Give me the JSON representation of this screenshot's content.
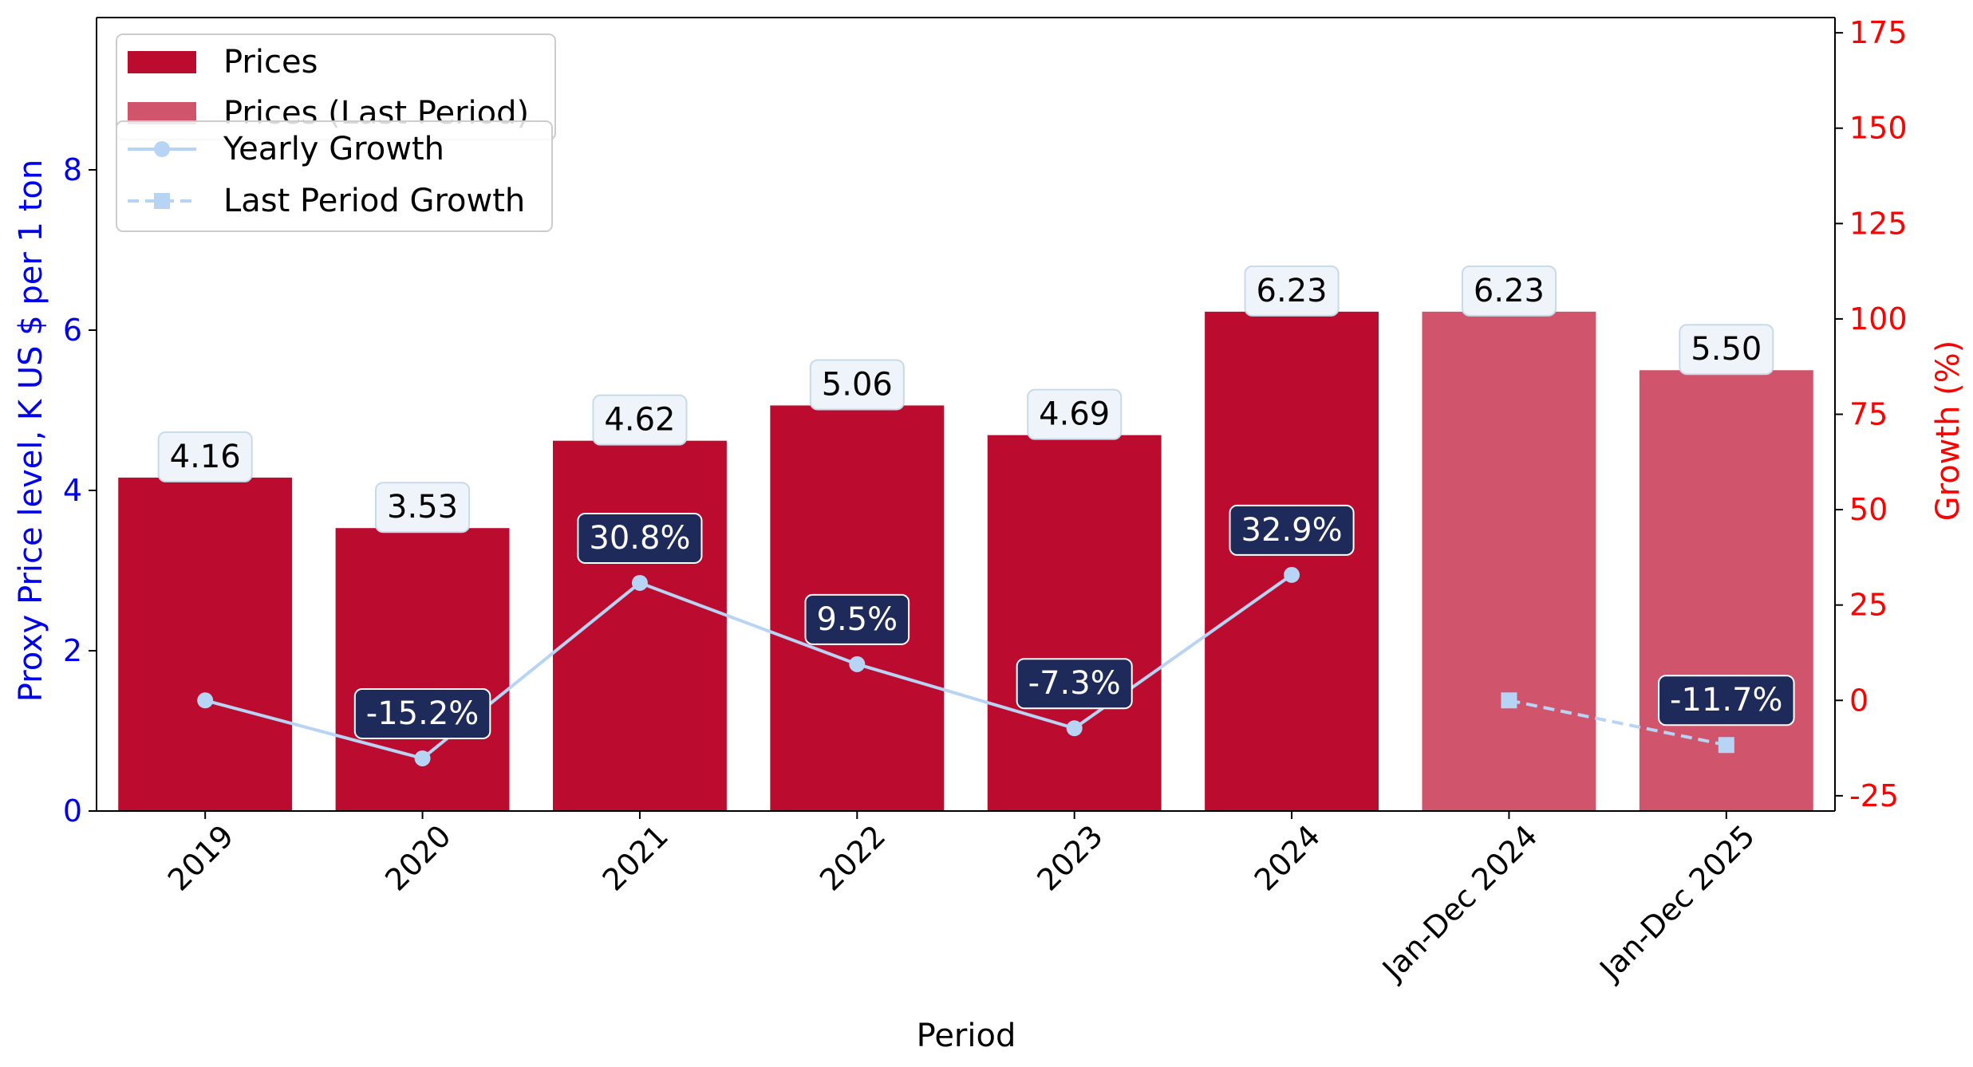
{
  "colors": {
    "bar": "#bb0c30",
    "bar_last": "#d0546c",
    "growth_line": "#b8d4f5",
    "growth_box": "#1e2a5a",
    "price_box": "#eef4fa",
    "left_axis": "#0000ee",
    "right_axis": "#ff0000"
  },
  "chart_data": {
    "type": "bar",
    "xlabel": "Period",
    "ylabel": "Proxy Price level, K US $ per 1 ton",
    "y2label": "Growth (%)",
    "ylim": [
      0,
      9.9
    ],
    "y2lim": [
      -29,
      179
    ],
    "yticks": [
      0,
      2,
      4,
      6,
      8
    ],
    "y2ticks": [
      -25,
      0,
      25,
      50,
      75,
      100,
      125,
      150,
      175
    ],
    "categories": [
      "2019",
      "2020",
      "2021",
      "2022",
      "2023",
      "2024",
      "Jan-Dec 2024",
      "Jan-Dec 2025"
    ],
    "series": [
      {
        "name": "Prices",
        "kind": "bar",
        "values": [
          4.16,
          3.53,
          4.62,
          5.06,
          4.69,
          6.23,
          null,
          null
        ],
        "labels": [
          "4.16",
          "3.53",
          "4.62",
          "5.06",
          "4.69",
          "6.23",
          null,
          null
        ]
      },
      {
        "name": "Prices (Last Period)",
        "kind": "bar",
        "values": [
          null,
          null,
          null,
          null,
          null,
          null,
          6.23,
          5.5
        ],
        "labels": [
          null,
          null,
          null,
          null,
          null,
          null,
          "6.23",
          "5.50"
        ]
      },
      {
        "name": "Yearly Growth",
        "kind": "line",
        "axis": "right",
        "values": [
          0,
          -15.2,
          30.8,
          9.5,
          -7.3,
          32.9,
          null,
          null
        ],
        "labels": [
          null,
          "-15.2%",
          "30.8%",
          "9.5%",
          "-7.3%",
          "32.9%",
          null,
          null
        ]
      },
      {
        "name": "Last Period Growth",
        "kind": "line",
        "axis": "right",
        "style": "dashed",
        "values": [
          null,
          null,
          null,
          null,
          null,
          null,
          0,
          -11.7
        ],
        "labels": [
          null,
          null,
          null,
          null,
          null,
          null,
          null,
          "-11.7%"
        ]
      }
    ],
    "legend_1": [
      "Prices",
      "Prices (Last Period)"
    ],
    "legend_2": [
      "Yearly Growth",
      "Last Period Growth"
    ],
    "legend_position": "top-left",
    "grid": false
  }
}
